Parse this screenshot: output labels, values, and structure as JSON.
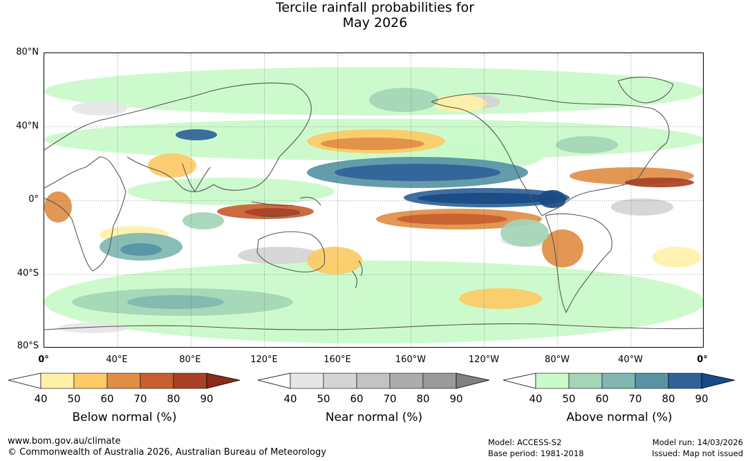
{
  "title": {
    "line1": "Tercile rainfall probabilities for",
    "line2": "May 2026"
  },
  "map": {
    "lat_labels": [
      "80°N",
      "40°N",
      "0°",
      "40°S",
      "80°S"
    ],
    "lon_labels": [
      "0°",
      "40°E",
      "80°E",
      "120°E",
      "160°E",
      "160°W",
      "120°W",
      "80°W",
      "40°W",
      "0°"
    ],
    "colors": {
      "below": [
        "#fff0a8",
        "#fdca65",
        "#e08e45",
        "#c85e30",
        "#a84126",
        "#8a2a18"
      ],
      "near": [
        "#e6e6e6",
        "#d4d4d4",
        "#c3c3c3",
        "#acacac",
        "#9a9a9a",
        "#808080"
      ],
      "above": [
        "#c9fac9",
        "#a4d5b6",
        "#80b7b1",
        "#5694a4",
        "#2f6298",
        "#174a86"
      ]
    }
  },
  "legends": [
    {
      "id": "below",
      "caption": "Below normal (%)",
      "ticks": [
        "40",
        "50",
        "60",
        "70",
        "80",
        "90"
      ]
    },
    {
      "id": "near",
      "caption": "Near normal (%)",
      "ticks": [
        "40",
        "50",
        "60",
        "70",
        "80",
        "90"
      ]
    },
    {
      "id": "above",
      "caption": "Above normal (%)",
      "ticks": [
        "40",
        "50",
        "60",
        "70",
        "80",
        "90"
      ]
    }
  ],
  "footer": {
    "website": "www.bom.gov.au/climate",
    "copyright": "© Commonwealth of Australia 2026, Australian Bureau of Meteorology",
    "model": "Model: ACCESS-S2",
    "base_period": "Base period: 1981-2018",
    "model_run": "Model run: 14/03/2026",
    "issued": "Issued: Map not issued"
  }
}
